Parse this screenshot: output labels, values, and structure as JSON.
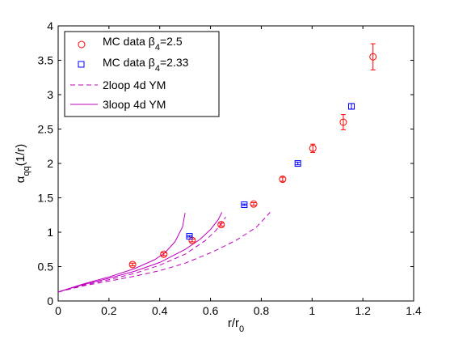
{
  "chart_data": {
    "type": "scatter",
    "xlim": [
      0,
      1.4
    ],
    "ylim": [
      0,
      4
    ],
    "xticks": [
      "0",
      "0.2",
      "0.4",
      "0.6",
      "0.8",
      "1",
      "1.2",
      "1.4"
    ],
    "yticks": [
      "0",
      "0.5",
      "1",
      "1.5",
      "2",
      "2.5",
      "3",
      "3.5",
      "4"
    ],
    "xlabel": {
      "main": "r/r",
      "sub": "0"
    },
    "ylabel": {
      "main": "α",
      "sub": "qq",
      "tail": "(1/r)"
    },
    "grid": false,
    "legend_position": "top-left",
    "colors": {
      "mc_25": "#ff0000",
      "mc_233": "#0000ff",
      "ym": "#bf00bf"
    },
    "series": [
      {
        "name": "MC data β4=2.5",
        "legend": {
          "main": "MC data β",
          "sub": "4",
          "tail": "=2.5"
        },
        "marker": "circle",
        "points": [
          {
            "x": 0.293,
            "y": 0.53,
            "err": 0.02
          },
          {
            "x": 0.416,
            "y": 0.68,
            "err": 0.02
          },
          {
            "x": 0.528,
            "y": 0.88,
            "err": 0.02
          },
          {
            "x": 0.642,
            "y": 1.11,
            "err": 0.02
          },
          {
            "x": 0.77,
            "y": 1.41,
            "err": 0.02
          },
          {
            "x": 0.884,
            "y": 1.77,
            "err": 0.03
          },
          {
            "x": 1.003,
            "y": 2.22,
            "err": 0.06
          },
          {
            "x": 1.123,
            "y": 2.6,
            "err": 0.11
          },
          {
            "x": 1.24,
            "y": 3.55,
            "err": 0.19
          }
        ]
      },
      {
        "name": "MC data β4=2.33",
        "legend": {
          "main": "MC data β",
          "sub": "4",
          "tail": "=2.33"
        },
        "marker": "square",
        "points": [
          {
            "x": 0.517,
            "y": 0.94,
            "err": 0.01
          },
          {
            "x": 0.733,
            "y": 1.4,
            "err": 0.01
          },
          {
            "x": 0.944,
            "y": 2.0,
            "err": 0.02
          },
          {
            "x": 1.155,
            "y": 2.83,
            "err": 0.04
          }
        ]
      },
      {
        "name": "2loop 4d YM",
        "legend": {
          "main": "2loop 4d YM"
        },
        "style": "dashed",
        "curves": [
          [
            [
              0.0,
              0.13
            ],
            [
              0.1,
              0.22
            ],
            [
              0.2,
              0.29
            ],
            [
              0.3,
              0.36
            ],
            [
              0.4,
              0.44
            ],
            [
              0.5,
              0.55
            ],
            [
              0.6,
              0.7
            ],
            [
              0.7,
              0.88
            ],
            [
              0.78,
              1.07
            ],
            [
              0.835,
              1.29
            ]
          ],
          [
            [
              0.0,
              0.13
            ],
            [
              0.1,
              0.23
            ],
            [
              0.2,
              0.31
            ],
            [
              0.3,
              0.4
            ],
            [
              0.4,
              0.52
            ],
            [
              0.5,
              0.68
            ],
            [
              0.58,
              0.88
            ],
            [
              0.62,
              1.02
            ],
            [
              0.66,
              1.22
            ]
          ]
        ]
      },
      {
        "name": "3loop 4d YM",
        "legend": {
          "main": "3loop 4d YM"
        },
        "style": "solid",
        "curves": [
          [
            [
              0.0,
              0.13
            ],
            [
              0.1,
              0.25
            ],
            [
              0.2,
              0.35
            ],
            [
              0.3,
              0.47
            ],
            [
              0.38,
              0.6
            ],
            [
              0.42,
              0.7
            ],
            [
              0.46,
              0.86
            ],
            [
              0.49,
              1.08
            ],
            [
              0.5,
              1.28
            ]
          ],
          [
            [
              0.0,
              0.13
            ],
            [
              0.1,
              0.24
            ],
            [
              0.2,
              0.33
            ],
            [
              0.3,
              0.43
            ],
            [
              0.4,
              0.56
            ],
            [
              0.5,
              0.75
            ],
            [
              0.56,
              0.9
            ],
            [
              0.6,
              1.04
            ],
            [
              0.63,
              1.18
            ],
            [
              0.645,
              1.29
            ]
          ]
        ]
      }
    ]
  }
}
